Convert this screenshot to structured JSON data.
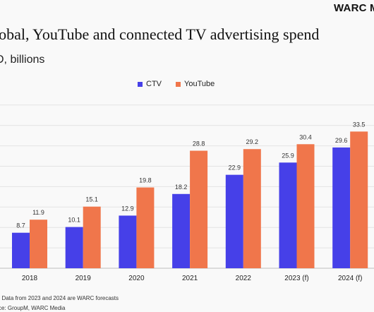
{
  "brand": "WARC M",
  "chart_data": {
    "type": "bar",
    "title": "lobal, YouTube and connected TV advertising spend",
    "subtitle": "D, billions",
    "categories": [
      "2018",
      "2019",
      "2020",
      "2021",
      "2022",
      "2023 (f)",
      "2024 (f)"
    ],
    "series": [
      {
        "name": "CTV",
        "color": "#4640e8",
        "values": [
          8.7,
          10.1,
          12.9,
          18.2,
          22.9,
          25.9,
          29.6
        ]
      },
      {
        "name": "YouTube",
        "color": "#f0764b",
        "values": [
          11.9,
          15.1,
          19.8,
          28.8,
          29.2,
          30.4,
          33.5
        ]
      }
    ],
    "ylim": [
      0,
      40
    ],
    "grid": true,
    "legend_position": "top-center"
  },
  "notes": {
    "note": ": Data from 2023 and 2024 are WARC forecasts",
    "source": "ce: GroupM, WARC Media"
  }
}
